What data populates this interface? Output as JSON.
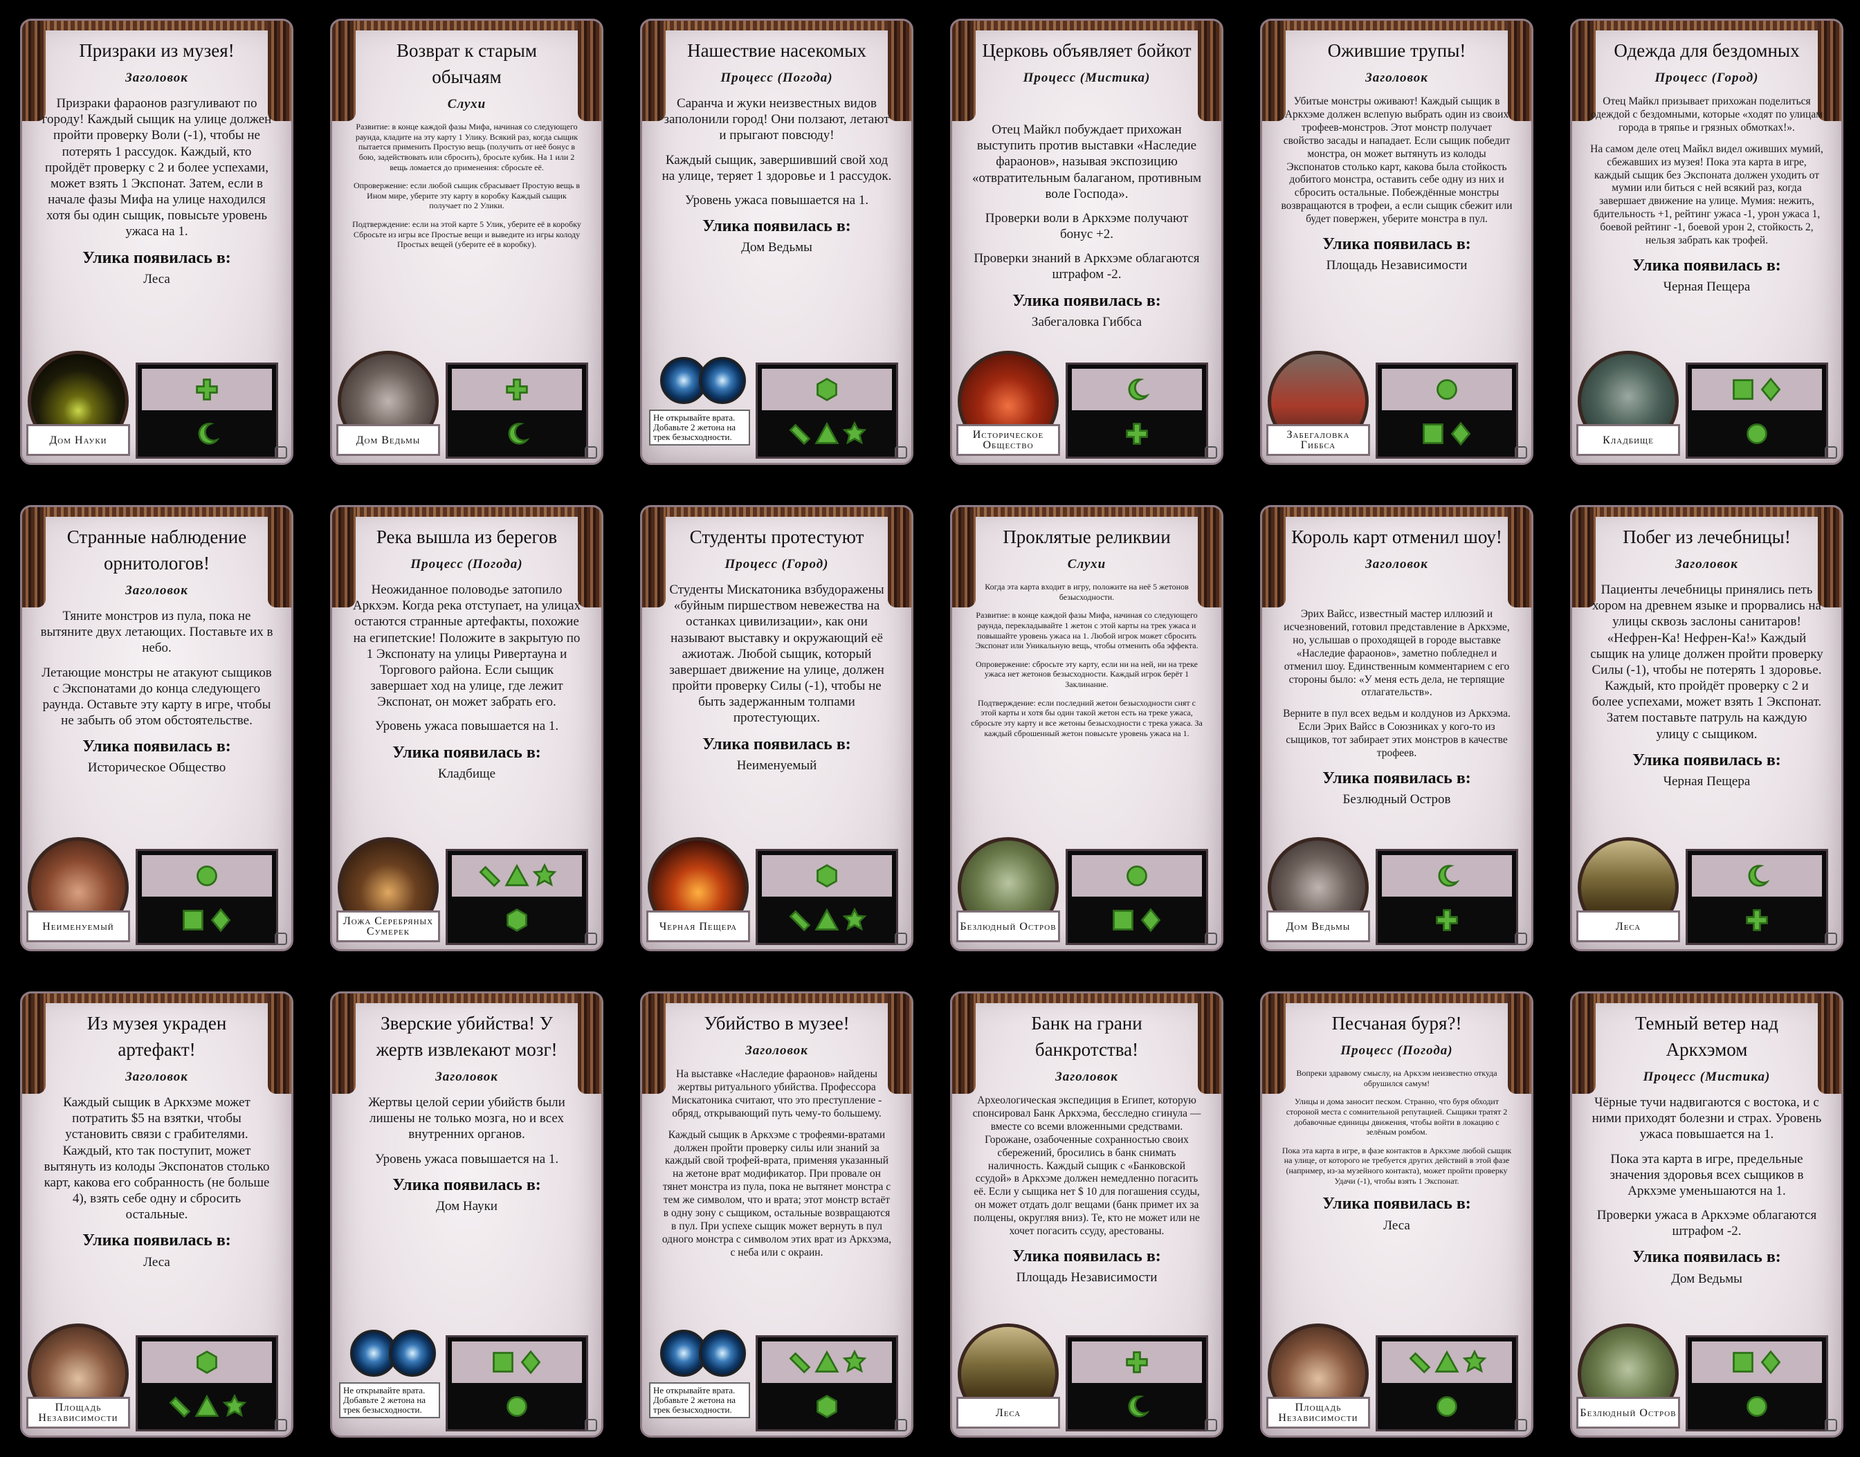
{
  "colors": {
    "symbol_green": "#5bb33a",
    "symbol_dark": "#2d6e18"
  },
  "cards": [
    {
      "title": "Призраки из музея!",
      "subtitle": "Заголовок",
      "body": [
        "Призраки фараонов разгуливают по городу! Каждый сыщик на улице должен пройти проверку Воли (-1), чтобы не потерять 1 рассудок. Каждый, кто пройдёт проверку с 2 и более успехами, может взять 1 Экспонат. Затем, если в начале фазы Мифа на улице находился хотя бы один сыщик, повысьте уровень ужаса на 1."
      ],
      "clue_heading": "Улика появилась в:",
      "clue_location": "Леса",
      "location_label": "Дом Науки",
      "top_symbols": [
        "plus"
      ],
      "bottom_symbols": [
        "moon"
      ],
      "portrait": "house-night"
    },
    {
      "title": "Возврат к старым обычаям",
      "subtitle": "Слухи",
      "body": [
        "Развитие: в конце каждой фазы Мифа, начиная со следующего раунда, кладите на эту карту 1 Улику. Всякий раз, когда сыщик пытается применить Простую вещь (получить от неё бонус в бою, задействовать или сбросить), бросьте кубик. На 1 или 2 вещь ломается до применения: сбросьте её.",
        "Опровержение: если любой сыщик сбрасывает Простую вещь в Ином мире, уберите эту карту в коробку Каждый сыщик получает по 2 Улики.",
        "Подтверждение: если на этой карте 5 Улик, уберите её в коробку Сбросьте из игры все Простые вещи и выведите из игры колоду Простых вещей (уберите её в коробку)."
      ],
      "small": true,
      "clue_heading": "",
      "clue_location": "",
      "location_label": "Дом Ведьмы",
      "top_symbols": [
        "plus"
      ],
      "bottom_symbols": [
        "moon"
      ],
      "portrait": "house-grey"
    },
    {
      "title": "Нашествие насекомых",
      "subtitle": "Процесс (Погода)",
      "body": [
        "Саранча и жуки неизвестных видов заполонили город! Они ползают, летают и прыгают повсюду!",
        "Каждый сыщик, завершивший свой ход на улице, теряет 1 здоровье и 1 рассудок.",
        "Уровень ужаса повышается на 1."
      ],
      "clue_heading": "Улика появилась в:",
      "clue_location": "Дом Ведьмы",
      "gate_note": "Не открывайте врата. Добавьте 2 жетона на трек безысходности.",
      "top_symbols": [
        "hexagon"
      ],
      "bottom_symbols": [
        "slash",
        "triangle",
        "star"
      ],
      "portrait": "gates"
    },
    {
      "title": "Церковь объявляет бойкот",
      "subtitle": "Процесс (Мистика)",
      "body": [
        "Отец Майкл побуждает прихожан выступить против выставки «Наследие фараонов», называя экспозицию «отвратительным балаганом, противным воле Господа».",
        "Проверки воли в Аркхэме получают бонус +2.",
        "Проверки знаний в Аркхэме облагаются штрафом -2."
      ],
      "clue_heading": "Улика появилась в:",
      "clue_location": "Забегаловка Гиббса",
      "location_label": "Историческое Общество",
      "top_symbols": [
        "moon"
      ],
      "bottom_symbols": [
        "plus"
      ],
      "portrait": "house-red"
    },
    {
      "title": "Ожившие трупы!",
      "subtitle": "Заголовок",
      "body": [
        "Убитые монстры оживают! Каждый сыщик в Аркхэме должен вслепую выбрать один из своих трофеев-монстров. Этот монстр получает свойство засады и нападает. Если сыщик победит монстра, он может вытянуть из колоды Экспонатов столько карт, какова была стойкость добитого монстра, оставить себе одну из них и сбросить остальные. Побеждённые монстры возвращаются в трофеи, а если сыщик сбежит или будет повержен, уберите монстра в пул."
      ],
      "small_mid": true,
      "clue_heading": "Улика появилась в:",
      "clue_location": "Площадь Независимости",
      "location_label": "Забегаловка Гиббса",
      "top_symbols": [
        "circle"
      ],
      "bottom_symbols": [
        "square",
        "diamond"
      ],
      "portrait": "diner"
    },
    {
      "title": "Одежда для бездомных",
      "subtitle": "Процесс (Город)",
      "body": [
        "Отец Майкл призывает прихожан поделиться одеждой с бездомными, которые «ходят по улицам города в тряпье и грязных обмотках!».",
        "На самом деле отец Майкл видел оживших мумий, сбежавших из музея! Пока эта карта в игре, каждый сыщик без Экспоната должен уходить от мумии или биться с ней всякий раз, когда завершает движение на улице. Мумия: нежить, бдительность +1, рейтинг ужаса -1, урон ужаса 1, боевой рейтинг -1, боевой урон 2, стойкость 2, нельзя забрать как трофей."
      ],
      "small_mid": true,
      "clue_heading": "Улика появилась в:",
      "clue_location": "Черная Пещера",
      "location_label": "Кладбище",
      "top_symbols": [
        "square",
        "diamond"
      ],
      "bottom_symbols": [
        "circle"
      ],
      "portrait": "cemetery"
    },
    {
      "title": "Странные наблюдение орнитологов!",
      "subtitle": "Заголовок",
      "body": [
        "Тяните монстров из пула, пока не вытяните двух летающих. Поставьте их в небо.",
        "Летающие монстры не атакуют сыщиков с Экспонатами до конца следующего раунда. Оставьте эту карту в игре, чтобы не забыть об этом обстоятельстве."
      ],
      "clue_heading": "Улика появилась в:",
      "clue_location": "Историческое Общество",
      "location_label": "Неименуемый",
      "top_symbols": [
        "circle"
      ],
      "bottom_symbols": [
        "square",
        "diamond"
      ],
      "portrait": "house-old"
    },
    {
      "title": "Река вышла из берегов",
      "subtitle": "Процесс (Погода)",
      "body": [
        "Неожиданное половодье затопило Аркхэм. Когда река отступает, на улицах остаются странные артефакты, похожие на египетские! Положите в закрытую по 1 Экспонату на улицы Ривертауна и Торгового района. Если сыщик завершает ход на улице, где лежит Экспонат, он может забрать его.",
        "Уровень ужаса повышается на 1."
      ],
      "clue_heading": "Улика появилась в:",
      "clue_location": "Кладбище",
      "location_label": "Ложа Серебряных Сумерек",
      "top_symbols": [
        "slash",
        "triangle",
        "star"
      ],
      "bottom_symbols": [
        "hexagon"
      ],
      "portrait": "lodge"
    },
    {
      "title": "Студенты протестуют",
      "subtitle": "Процесс (Город)",
      "body": [
        "Студенты Мискатоника взбудоражены «буйным пиршеством невежества на останках цивилизации», как они называют выставку и окружающий её ажиотаж. Любой сыщик, который завершает движение на улице, должен пройти проверку Силы (-1), чтобы не быть задержанным толпами протестующих."
      ],
      "clue_heading": "Улика появилась в:",
      "clue_location": "Неименуемый",
      "location_label": "Черная Пещера",
      "top_symbols": [
        "hexagon"
      ],
      "bottom_symbols": [
        "slash",
        "triangle",
        "star"
      ],
      "portrait": "cave"
    },
    {
      "title": "Проклятые реликвии",
      "subtitle": "Слухи",
      "body": [
        "Когда эта карта входит в игру, положите на неё 5 жетонов безысходности.",
        "Развитие: в конце каждой фазы Мифа, начиная со следующего раунда, перекладывайте 1 жетон с этой карты на трек ужаса и повышайте уровень ужаса на 1. Любой игрок может сбросить Экспонат или Уникальную вещь, чтобы отменить оба эффекта.",
        "Опровержение: сбросьте эту карту, если ни на ней, ни на треке ужаса нет жетонов безысходности. Каждый игрок берёт 1 Заклинание.",
        "Подтверждение: если последний жетон безысходности снят с этой карты и хотя бы один такой жетон есть на треке ужаса, сбросьте эту карту и все жетоны безысходности с трека ужаса. За каждый сброшенный жетон повысьте уровень ужаса на 1."
      ],
      "small": true,
      "clue_heading": "",
      "clue_location": "",
      "location_label": "Безлюдный Остров",
      "top_symbols": [
        "circle"
      ],
      "bottom_symbols": [
        "square",
        "diamond"
      ],
      "portrait": "island"
    },
    {
      "title": "Король карт отменил шоу!",
      "subtitle": "Заголовок",
      "body": [
        "Эрих Вайсс, известный мастер иллюзий и исчезновений, готовил представление в Аркхэме, но, услышав о проходящей в городе выставке «Наследие фараонов», заметно побледнел и отменил шоу. Единственным комментарием с его стороны было: «У меня есть дела, не терпящие отлагательств».",
        "Верните в пул всех ведьм и колдунов из Аркхэма. Если Эрих Вайсс в Союзниках у кого-то из сыщиков, тот забирает этих монстров в качестве трофеев."
      ],
      "small_mid": true,
      "clue_heading": "Улика появилась в:",
      "clue_location": "Безлюдный Остров",
      "location_label": "Дом Ведьмы",
      "top_symbols": [
        "moon"
      ],
      "bottom_symbols": [
        "plus"
      ],
      "portrait": "house-grey"
    },
    {
      "title": "Побег из лечебницы!",
      "subtitle": "Заголовок",
      "body": [
        "Пациенты лечебницы принялись петь хором на древнем языке и прорвались на улицы сквозь заслоны санитаров! «Нефрен-Ка! Нефрен-Ка!» Каждый сыщик на улице должен пройти проверку Силы (-1), чтобы не потерять 1 здоровье. Каждый, кто пройдёт проверку с 2 и более успехами, может взять 1 Экспонат. Затем поставьте патруль на каждую улицу с сыщиком."
      ],
      "clue_heading": "Улика появилась в:",
      "clue_location": "Черная Пещера",
      "location_label": "Леса",
      "top_symbols": [
        "moon"
      ],
      "bottom_symbols": [
        "plus"
      ],
      "portrait": "woods"
    },
    {
      "title": "Из музея украден артефакт!",
      "subtitle": "Заголовок",
      "body": [
        "Каждый сыщик в Аркхэме может потратить $5 на взятки, чтобы установить связи с грабителями. Каждый, кто так поступит, может вытянуть из колоды Экспонатов столько карт, какова его собранность (не больше 4), взять себе одну и сбросить остальные."
      ],
      "clue_heading": "Улика появилась в:",
      "clue_location": "Леса",
      "location_label": "Площадь Независимости",
      "top_symbols": [
        "hexagon"
      ],
      "bottom_symbols": [
        "slash",
        "triangle",
        "star"
      ],
      "portrait": "square"
    },
    {
      "title": "Зверские убийства! У жертв извлекают мозг!",
      "subtitle": "Заголовок",
      "body": [
        "Жертвы целой серии убийств были лишены не только мозга, но и всех внутренних органов.",
        "Уровень ужаса повышается на 1."
      ],
      "clue_heading": "Улика появилась в:",
      "clue_location": "Дом Науки",
      "gate_note": "Не открывайте врата. Добавьте 2 жетона на трек безысходности.",
      "top_symbols": [
        "square",
        "diamond"
      ],
      "bottom_symbols": [
        "circle"
      ],
      "portrait": "gates"
    },
    {
      "title": "Убийство в музее!",
      "subtitle": "Заголовок",
      "body": [
        "На выставке «Наследие фараонов» найдены жертвы ритуального убийства. Профессора Мискатоника считают, что это преступление - обряд, открывающий путь чему-то большему.",
        "Каждый сыщик в Аркхэме с трофеями-вратами должен пройти проверку силы или знаний за каждый свой трофей-врата, применяя указанный на жетоне врат модификатор. При провале он тянет монстра из пула, пока не вытянет монстра с тем же символом, что и врата; этот монстр встаёт в одну зону с сыщиком, остальные возвращаются в пул. При успехе сыщик может вернуть в пул одного монстра с символом этих врат из Аркхэма, с неба или с окраин."
      ],
      "small_mid": true,
      "clue_heading": "",
      "clue_location": "",
      "gate_note": "Не открывайте врата. Добавьте 2 жетона на трек безысходности.",
      "top_symbols": [
        "slash",
        "triangle",
        "star"
      ],
      "bottom_symbols": [
        "hexagon"
      ],
      "portrait": "gates"
    },
    {
      "title": "Банк на грани банкротства!",
      "subtitle": "Заголовок",
      "body": [
        "Археологическая экспедиция в Египет, которую спонсировал Банк Аркхэма, бесследно сгинула — вместе со всеми вложенными средствами. Горожане, озабоченные сохранностью своих сбережений, бросились в банк снимать наличность. Каждый сыщик с «Банковской ссудой» в Аркхэме должен немедленно погасить её. Если у сыщика нет $ 10 для погашения ссуды, он может отдать долг вещами (банк примет их за полцены, округляя вниз). Те, кто не может или не хочет погасить ссуду, арестованы."
      ],
      "small_mid": true,
      "clue_heading": "Улика появилась в:",
      "clue_location": "Площадь Независимости",
      "location_label": "Леса",
      "top_symbols": [
        "plus"
      ],
      "bottom_symbols": [
        "moon"
      ],
      "portrait": "woods"
    },
    {
      "title": "Песчаная буря?!",
      "subtitle": "Процесс (Погода)",
      "body": [
        "Вопреки здравому смыслу, на Аркхэм неизвестно откуда обрушился самум!",
        "Улицы и дома заносит песком. Странно, что буря обходит стороной места с сомнительной репутацией. Сыщики тратят 2 добавочные единицы движения, чтобы войти в локацию с зелёным ромбом.",
        "Пока эта карта в игре, в фазе контактов в Аркхэме любой сыщик на улице, от которого не требуется других действий в этой фазе (например, из-за музейного контакта), может пройти проверку Удачи (-1), чтобы взять 1 Экспонат."
      ],
      "small": true,
      "clue_heading": "Улика появилась в:",
      "clue_location": "Леса",
      "location_label": "Площадь Независимости",
      "top_symbols": [
        "slash",
        "triangle",
        "star"
      ],
      "bottom_symbols": [
        "circle"
      ],
      "portrait": "square"
    },
    {
      "title": "Темный ветер над Аркхэмом",
      "subtitle": "Процесс (Мистика)",
      "body": [
        "Чёрные тучи надвигаются с востока, и с ними приходят болезни и страх. Уровень ужаса повышается на 1.",
        "Пока эта карта в игре, предельные значения здоровья всех сыщиков в Аркхэме уменьшаются на 1.",
        "Проверки ужаса в Аркхэме облагаются штрафом -2."
      ],
      "clue_heading": "Улика появилась в:",
      "clue_location": "Дом Ведьмы",
      "location_label": "Безлюдный Остров",
      "top_symbols": [
        "square",
        "diamond"
      ],
      "bottom_symbols": [
        "circle"
      ],
      "portrait": "island"
    }
  ]
}
